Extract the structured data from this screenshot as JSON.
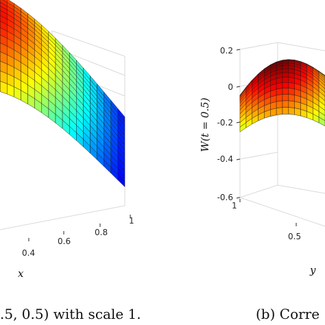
{
  "chart_data": [
    {
      "type": "surface",
      "title": "",
      "xlabel": "x",
      "ylabel": "",
      "zlabel": "",
      "x_ticks": [
        "0.4",
        "0.6",
        "0.8",
        "1"
      ],
      "caption": ".5, 0.5) with scale 1.",
      "colormap": "jet",
      "grid": true
    },
    {
      "type": "surface",
      "title": "",
      "xlabel": "",
      "ylabel": "y",
      "zlabel": "W(t = 0.5)",
      "z_ticks": [
        "0.2",
        "0",
        "-0.2",
        "-0.4",
        "-0.6"
      ],
      "y_ticks": [
        "1",
        "0.5"
      ],
      "zlim": [
        -0.6,
        0.2
      ],
      "caption": "(b) Corre",
      "colormap": "jet",
      "grid": true
    }
  ]
}
